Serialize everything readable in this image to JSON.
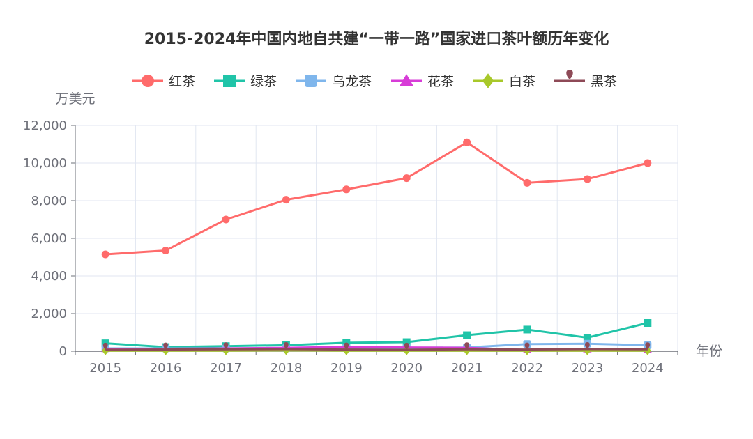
{
  "chart_data": {
    "type": "line",
    "title": "2015-2024年中国内地自共建“一带一路”国家进口茶叶额历年变化",
    "xlabel": "年份",
    "ylabel": "万美元",
    "categories": [
      "2015",
      "2016",
      "2017",
      "2018",
      "2019",
      "2020",
      "2021",
      "2022",
      "2023",
      "2024"
    ],
    "ylim": [
      0,
      12000
    ],
    "yticks": [
      "0",
      "2,000",
      "4,000",
      "6,000",
      "8,000",
      "10,000",
      "12,000"
    ],
    "grid": true,
    "legend_position": "top",
    "series": [
      {
        "name": "红茶",
        "color": "#ff6b6b",
        "marker": "circle",
        "values": [
          5150,
          5350,
          7000,
          8050,
          8600,
          9200,
          11100,
          8950,
          9150,
          10000
        ]
      },
      {
        "name": "绿茶",
        "color": "#20c4a8",
        "marker": "square",
        "values": [
          420,
          220,
          270,
          320,
          450,
          480,
          850,
          1150,
          720,
          1500
        ]
      },
      {
        "name": "乌龙茶",
        "color": "#7fb6ec",
        "marker": "roundRect",
        "values": [
          150,
          150,
          150,
          160,
          170,
          180,
          200,
          380,
          400,
          320
        ]
      },
      {
        "name": "花茶",
        "color": "#d73cd7",
        "marker": "triangle",
        "values": [
          120,
          130,
          150,
          180,
          230,
          200,
          180,
          60,
          100,
          80
        ]
      },
      {
        "name": "白茶",
        "color": "#a8c82a",
        "marker": "diamond",
        "values": [
          30,
          30,
          30,
          40,
          30,
          30,
          30,
          30,
          30,
          30
        ]
      },
      {
        "name": "黑茶",
        "color": "#8e4a57",
        "marker": "pin",
        "values": [
          80,
          90,
          100,
          110,
          90,
          80,
          100,
          90,
          110,
          100
        ]
      }
    ]
  }
}
